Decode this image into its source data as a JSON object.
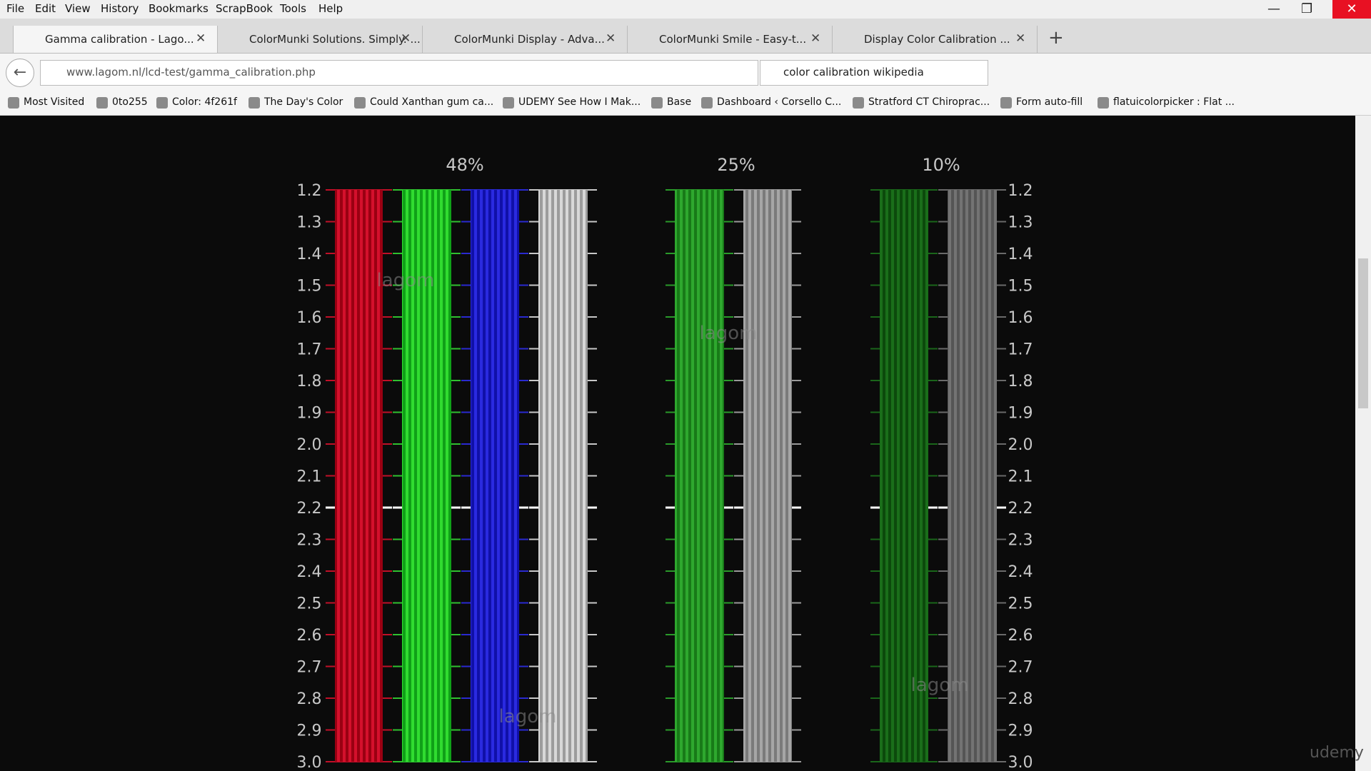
{
  "menu": [
    "File",
    "Edit",
    "View",
    "History",
    "Bookmarks",
    "ScrapBook",
    "Tools",
    "Help"
  ],
  "tabs": [
    "Gamma calibration - Lago...",
    "ColorMunki Solutions. Simply. ...",
    "ColorMunki Display - Adva...",
    "ColorMunki Smile - Easy-t...",
    "Display Color Calibration ..."
  ],
  "address": "www.lagom.nl/lcd-test/gamma_calibration.php",
  "search": "color calibration wikipedia",
  "bookmarks": [
    "Most Visited",
    "0to255",
    "Color: 4f261f",
    "The Day's Color",
    "Could Xanthan gum ca...",
    "UDEMY See How I Mak...",
    "Base",
    "Dashboard ‹ Corsello C...",
    "Stratford CT Chiroprac...",
    "Form auto-fill",
    "flatuicolorpicker : Flat ..."
  ],
  "chart": {
    "groups": [
      "48%",
      "25%",
      "10%"
    ],
    "gamma_labels": [
      "1.2",
      "1.3",
      "1.4",
      "1.5",
      "1.6",
      "1.7",
      "1.8",
      "1.9",
      "2.0",
      "2.1",
      "2.2",
      "2.3",
      "2.4",
      "2.5",
      "2.6",
      "2.7",
      "2.8",
      "2.9",
      "3.0"
    ],
    "watermark": "lagom"
  },
  "overlay": "udemy"
}
